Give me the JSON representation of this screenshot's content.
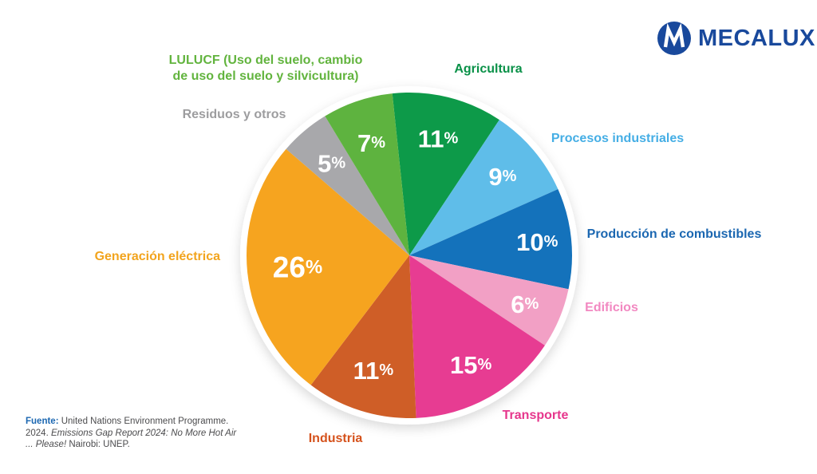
{
  "brand": {
    "name": "MECALUX",
    "logo_color": "#19499c"
  },
  "footer": {
    "source_label": "Fuente:",
    "text_1": " United Nations Environment Programme. 2024. ",
    "text_italic": "Emissions Gap Report 2024: No More Hot Air ... Please!",
    "text_2": " Nairobi: UNEP."
  },
  "chart_data": {
    "type": "pie",
    "title": "",
    "unit": "%",
    "start_angle_deg": -6,
    "direction": "clockwise",
    "slices": [
      {
        "id": "agricultura",
        "label": "Agricultura",
        "value": 11,
        "color": "#0d9a49",
        "label_color": "#0a9148",
        "label_r": 0.74
      },
      {
        "id": "procesos-industriales",
        "label": "Procesos industriales",
        "value": 9,
        "color": "#5fbde9",
        "label_color": "#45aee5",
        "label_r": 0.75
      },
      {
        "id": "produccion-combustibles",
        "label": "Producción de combustibles",
        "value": 10,
        "color": "#1472bb",
        "label_color": "#1b67b1",
        "label_r": 0.79
      },
      {
        "id": "edificios",
        "label": "Edificios",
        "value": 6,
        "color": "#f2a0c5",
        "label_color": "#f288c1",
        "label_r": 0.77
      },
      {
        "id": "transporte",
        "label": "Transporte",
        "value": 15,
        "color": "#e73c92",
        "label_color": "#e6368c",
        "label_r": 0.77
      },
      {
        "id": "industria",
        "label": "Industria",
        "value": 11,
        "color": "#cf5e27",
        "label_color": "#d5521c",
        "label_r": 0.74
      },
      {
        "id": "generacion-electrica",
        "label": "Generación eléctrica",
        "value": 26,
        "color": "#f6a41f",
        "label_color": "#f2a41d",
        "label_r": 0.69
      },
      {
        "id": "residuos-otros",
        "label": "Residuos y otros",
        "value": 5,
        "color": "#a8a8ab",
        "label_color": "#9d9d9f",
        "label_r": 0.74
      },
      {
        "id": "lulucf",
        "label": "LULUCF (Uso del suelo, cambio\nde uso del suelo y silvicultura)",
        "value": 7,
        "color": "#5eb33f",
        "label_color": "#62b43e",
        "label_r": 0.73
      }
    ]
  }
}
